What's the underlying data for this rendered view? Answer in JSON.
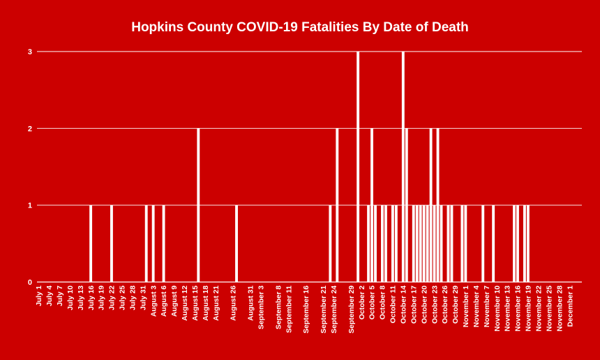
{
  "colors": {
    "background": "#cc0000",
    "bar": "#ffffff",
    "grid": "#ffffff",
    "text": "#ffffff"
  },
  "chart_data": {
    "type": "bar",
    "title": "Hopkins County COVID-19 Fatalities By Date of Death",
    "xlabel": "",
    "ylabel": "",
    "ylim": [
      0,
      3
    ],
    "yticks": [
      "0",
      "1",
      "2",
      "3"
    ],
    "grid": true,
    "legend": "none",
    "x_tick_labels": [
      "July 1",
      "July 4",
      "July 7",
      "July 10",
      "July 13",
      "July 16",
      "July 19",
      "July 22",
      "July 25",
      "July 28",
      "July 31",
      "August 3",
      "August 6",
      "August 9",
      "August 12",
      "August 15",
      "August 18",
      "August 21",
      "August 26",
      "August 31",
      "September 3",
      "September 8",
      "September 11",
      "September 16",
      "September 21",
      "September 24",
      "September 29",
      "October 2",
      "October 5",
      "October 8",
      "October 11",
      "October 14",
      "October 17",
      "October 20",
      "October 23",
      "October 26",
      "October 29",
      "November 1",
      "November 4",
      "November 7",
      "November 10",
      "November 13",
      "November 16",
      "November 19",
      "November 22",
      "November 25",
      "November 28",
      "December 1"
    ],
    "bars": [
      {
        "date": "2020-07-16",
        "value": 1
      },
      {
        "date": "2020-07-22",
        "value": 1
      },
      {
        "date": "2020-08-01",
        "value": 1
      },
      {
        "date": "2020-08-03",
        "value": 1
      },
      {
        "date": "2020-08-06",
        "value": 1
      },
      {
        "date": "2020-08-16",
        "value": 2
      },
      {
        "date": "2020-08-27",
        "value": 1
      },
      {
        "date": "2020-09-23",
        "value": 1
      },
      {
        "date": "2020-09-25",
        "value": 2
      },
      {
        "date": "2020-10-01",
        "value": 3
      },
      {
        "date": "2020-10-04",
        "value": 1
      },
      {
        "date": "2020-10-05",
        "value": 2
      },
      {
        "date": "2020-10-06",
        "value": 1
      },
      {
        "date": "2020-10-08",
        "value": 1
      },
      {
        "date": "2020-10-09",
        "value": 1
      },
      {
        "date": "2020-10-11",
        "value": 1
      },
      {
        "date": "2020-10-12",
        "value": 1
      },
      {
        "date": "2020-10-14",
        "value": 3
      },
      {
        "date": "2020-10-15",
        "value": 2
      },
      {
        "date": "2020-10-17",
        "value": 1
      },
      {
        "date": "2020-10-18",
        "value": 1
      },
      {
        "date": "2020-10-19",
        "value": 1
      },
      {
        "date": "2020-10-20",
        "value": 1
      },
      {
        "date": "2020-10-21",
        "value": 1
      },
      {
        "date": "2020-10-22",
        "value": 2
      },
      {
        "date": "2020-10-23",
        "value": 1
      },
      {
        "date": "2020-10-24",
        "value": 2
      },
      {
        "date": "2020-10-25",
        "value": 1
      },
      {
        "date": "2020-10-27",
        "value": 1
      },
      {
        "date": "2020-10-28",
        "value": 1
      },
      {
        "date": "2020-10-31",
        "value": 1
      },
      {
        "date": "2020-11-01",
        "value": 1
      },
      {
        "date": "2020-11-06",
        "value": 1
      },
      {
        "date": "2020-11-09",
        "value": 1
      },
      {
        "date": "2020-11-15",
        "value": 1
      },
      {
        "date": "2020-11-16",
        "value": 1
      },
      {
        "date": "2020-11-18",
        "value": 1
      },
      {
        "date": "2020-11-19",
        "value": 1
      }
    ]
  }
}
